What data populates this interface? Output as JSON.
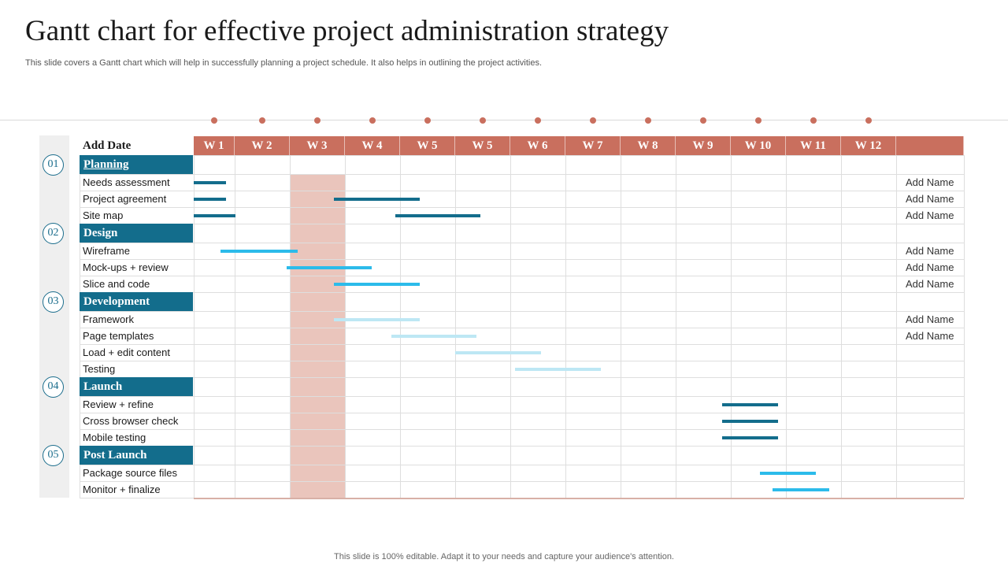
{
  "title": "Gantt chart for effective project administration strategy",
  "subtitle": "This slide covers a Gantt chart which will help in successfully planning a project schedule. It  also helps in outlining the project activities.",
  "footer": "This slide is 100% editable. Adapt it to your needs and capture your audience's attention.",
  "header_label": "Add Date",
  "colors": {
    "accent": "#c96f5e",
    "highlight": "#eac5bc",
    "section": "#136d8c",
    "bar_dark": "#136d8c",
    "bar_bright": "#2cbbea",
    "bar_light": "#bde7f4"
  },
  "chart_data": {
    "type": "gantt",
    "weeks": [
      "W 1",
      "W 2",
      "W 3",
      "W 4",
      "W 5",
      "W 5",
      "W 6",
      "W 7",
      "W 8",
      "W 9",
      "W 10",
      "W 11",
      "W 12"
    ],
    "highlighted_week_column": 3,
    "sections": [
      {
        "number": "01",
        "name": "Planning",
        "tasks": [
          {
            "name": "Needs assessment",
            "owner": "Add Name",
            "start": 0.0,
            "end": 0.78,
            "color": "dark"
          },
          {
            "name": "Project agreement",
            "owner": "Add Name",
            "start": 0.0,
            "end": 0.78,
            "color": "dark",
            "extra": {
              "start": 2.8,
              "end": 4.35
            }
          },
          {
            "name": "Site map",
            "owner": "Add Name",
            "start": 0.0,
            "end": 1.01,
            "color": "dark",
            "extra": {
              "start": 3.92,
              "end": 5.46
            }
          }
        ]
      },
      {
        "number": "02",
        "name": "Design",
        "tasks": [
          {
            "name": "Wireframe",
            "owner": "Add Name",
            "start": 0.65,
            "end": 2.14,
            "color": "bright"
          },
          {
            "name": "Mock-ups + review",
            "owner": "Add Name",
            "start": 1.94,
            "end": 3.48,
            "color": "bright"
          },
          {
            "name": "Slice and code",
            "owner": "Add Name",
            "start": 2.8,
            "end": 4.35,
            "color": "bright"
          }
        ]
      },
      {
        "number": "03",
        "name": "Development",
        "tasks": [
          {
            "name": "Framework",
            "owner": "Add Name",
            "start": 2.8,
            "end": 4.35,
            "color": "light"
          },
          {
            "name": "Page templates",
            "owner": "Add Name",
            "start": 3.84,
            "end": 5.39,
            "color": "light"
          },
          {
            "name": "Load + edit content",
            "owner": "",
            "start": 5.0,
            "end": 6.55,
            "color": "light"
          },
          {
            "name": "Testing",
            "owner": "",
            "start": 6.09,
            "end": 7.64,
            "color": "light"
          }
        ]
      },
      {
        "number": "04",
        "name": "Launch",
        "tasks": [
          {
            "name": "Review  + refine",
            "owner": "",
            "start": 9.84,
            "end": 10.86,
            "color": "dark"
          },
          {
            "name": "Cross browser check",
            "owner": "",
            "start": 9.84,
            "end": 10.86,
            "color": "dark"
          },
          {
            "name": "Mobile testing",
            "owner": "",
            "start": 9.84,
            "end": 10.86,
            "color": "dark"
          }
        ]
      },
      {
        "number": "05",
        "name": "Post Launch",
        "tasks": [
          {
            "name": "Package source files",
            "owner": "",
            "start": 10.53,
            "end": 11.55,
            "color": "bright"
          },
          {
            "name": "Monitor + finalize",
            "owner": "",
            "start": 10.76,
            "end": 11.78,
            "color": "bright"
          }
        ]
      }
    ]
  }
}
